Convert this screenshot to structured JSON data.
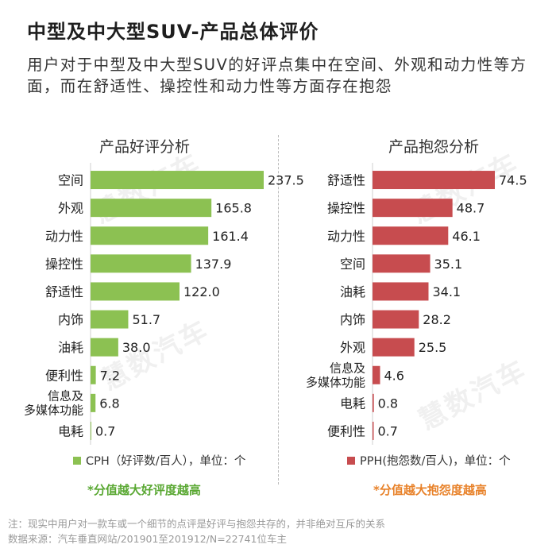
{
  "title": "中型及中大型SUV-产品总体评价",
  "subtitle": "用户对于中型及中大型SUV的好评点集中在空间、外观和动力性等方面，而在舒适性、操控性和动力性等方面存在抱怨",
  "watermark_text": "慧数汽车",
  "colors": {
    "positive": "#8cc152",
    "negative": "#c74c4f",
    "emphasis_positive": "#5aa833",
    "emphasis_negative": "#e8822a"
  },
  "chart_data": [
    {
      "type": "bar",
      "orientation": "horizontal",
      "title": "产品好评分析",
      "categories": [
        "空间",
        "外观",
        "动力性",
        "操控性",
        "舒适性",
        "内饰",
        "油耗",
        "便利性",
        "信息及多媒体功能",
        "电耗"
      ],
      "category_lines": [
        [
          "空间"
        ],
        [
          "外观"
        ],
        [
          "动力性"
        ],
        [
          "操控性"
        ],
        [
          "舒适性"
        ],
        [
          "内饰"
        ],
        [
          "油耗"
        ],
        [
          "便利性"
        ],
        [
          "信息及",
          "多媒体功能"
        ],
        [
          "电耗"
        ]
      ],
      "values": [
        237.5,
        165.8,
        161.4,
        137.9,
        122.0,
        51.7,
        38.0,
        7.2,
        6.8,
        0.7
      ],
      "value_labels": [
        "237.5",
        "165.8",
        "161.4",
        "137.9",
        "122.0",
        "51.7",
        "38.0",
        "7.2",
        "6.8",
        "0.7"
      ],
      "legend": "CPH（好评数/百人），单位：个",
      "emphasis": "*分值越大好评度越高",
      "color": "#8cc152"
    },
    {
      "type": "bar",
      "orientation": "horizontal",
      "title": "产品抱怨分析",
      "categories": [
        "舒适性",
        "操控性",
        "动力性",
        "空间",
        "油耗",
        "内饰",
        "外观",
        "信息及多媒体功能",
        "电耗",
        "便利性"
      ],
      "category_lines": [
        [
          "舒适性"
        ],
        [
          "操控性"
        ],
        [
          "动力性"
        ],
        [
          "空间"
        ],
        [
          "油耗"
        ],
        [
          "内饰"
        ],
        [
          "外观"
        ],
        [
          "信息及",
          "多媒体功能"
        ],
        [
          "电耗"
        ],
        [
          "便利性"
        ]
      ],
      "values": [
        74.5,
        48.7,
        46.1,
        35.1,
        34.1,
        28.2,
        25.5,
        4.6,
        0.8,
        0.7
      ],
      "value_labels": [
        "74.5",
        "48.7",
        "46.1",
        "35.1",
        "34.1",
        "28.2",
        "25.5",
        "4.6",
        "0.8",
        "0.7"
      ],
      "legend": "PPH(抱怨数/百人)，单位：个",
      "emphasis": "*分值越大抱怨度越高",
      "color": "#c74c4f"
    }
  ],
  "footnote": "注：现实中用户对一款车或一个细节的点评是好评与抱怨共存的，并非绝对互斥的关系",
  "source": "数据来源：汽车垂直网站/201901至201912/N=22741位车主"
}
